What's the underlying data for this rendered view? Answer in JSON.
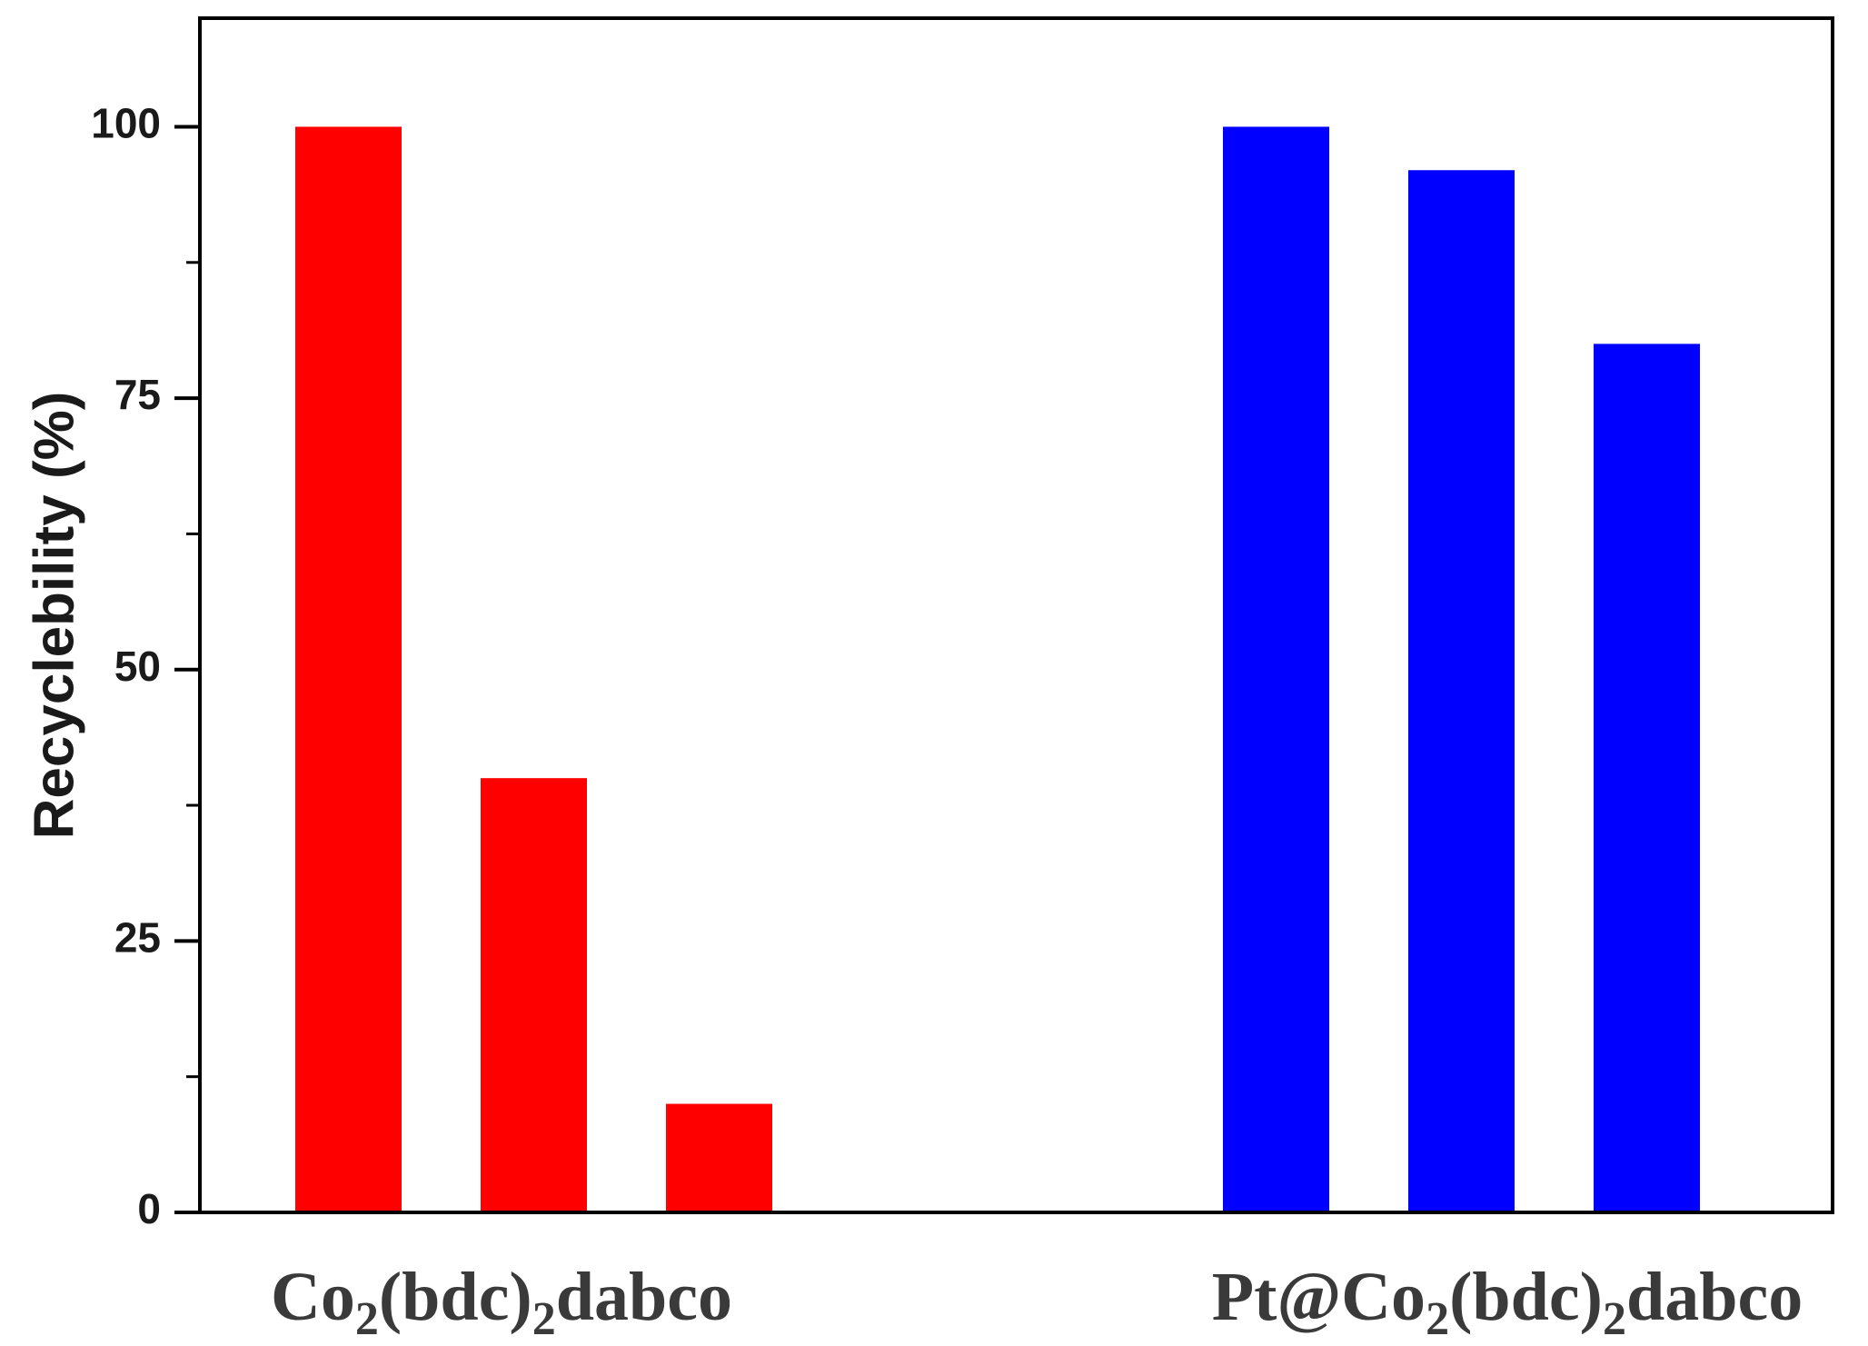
{
  "chart_data": {
    "type": "bar",
    "ylabel": "Recyclebility (%)",
    "ylim": [
      0,
      110
    ],
    "yticks": [
      0,
      25,
      50,
      75,
      100
    ],
    "yticks_minor": [
      12.5,
      37.5,
      62.5,
      87.5
    ],
    "grid": false,
    "legend": "none",
    "groups": [
      {
        "label_parts": [
          "Co",
          "2",
          "(bdc)",
          "2",
          "dabco"
        ],
        "color": "#ff0000",
        "values": [
          100,
          40,
          10
        ]
      },
      {
        "label_parts": [
          "Pt@Co",
          "2",
          "(bdc)",
          "2",
          "dabco"
        ],
        "color": "#0000ff",
        "values": [
          100,
          96,
          80
        ]
      }
    ]
  }
}
